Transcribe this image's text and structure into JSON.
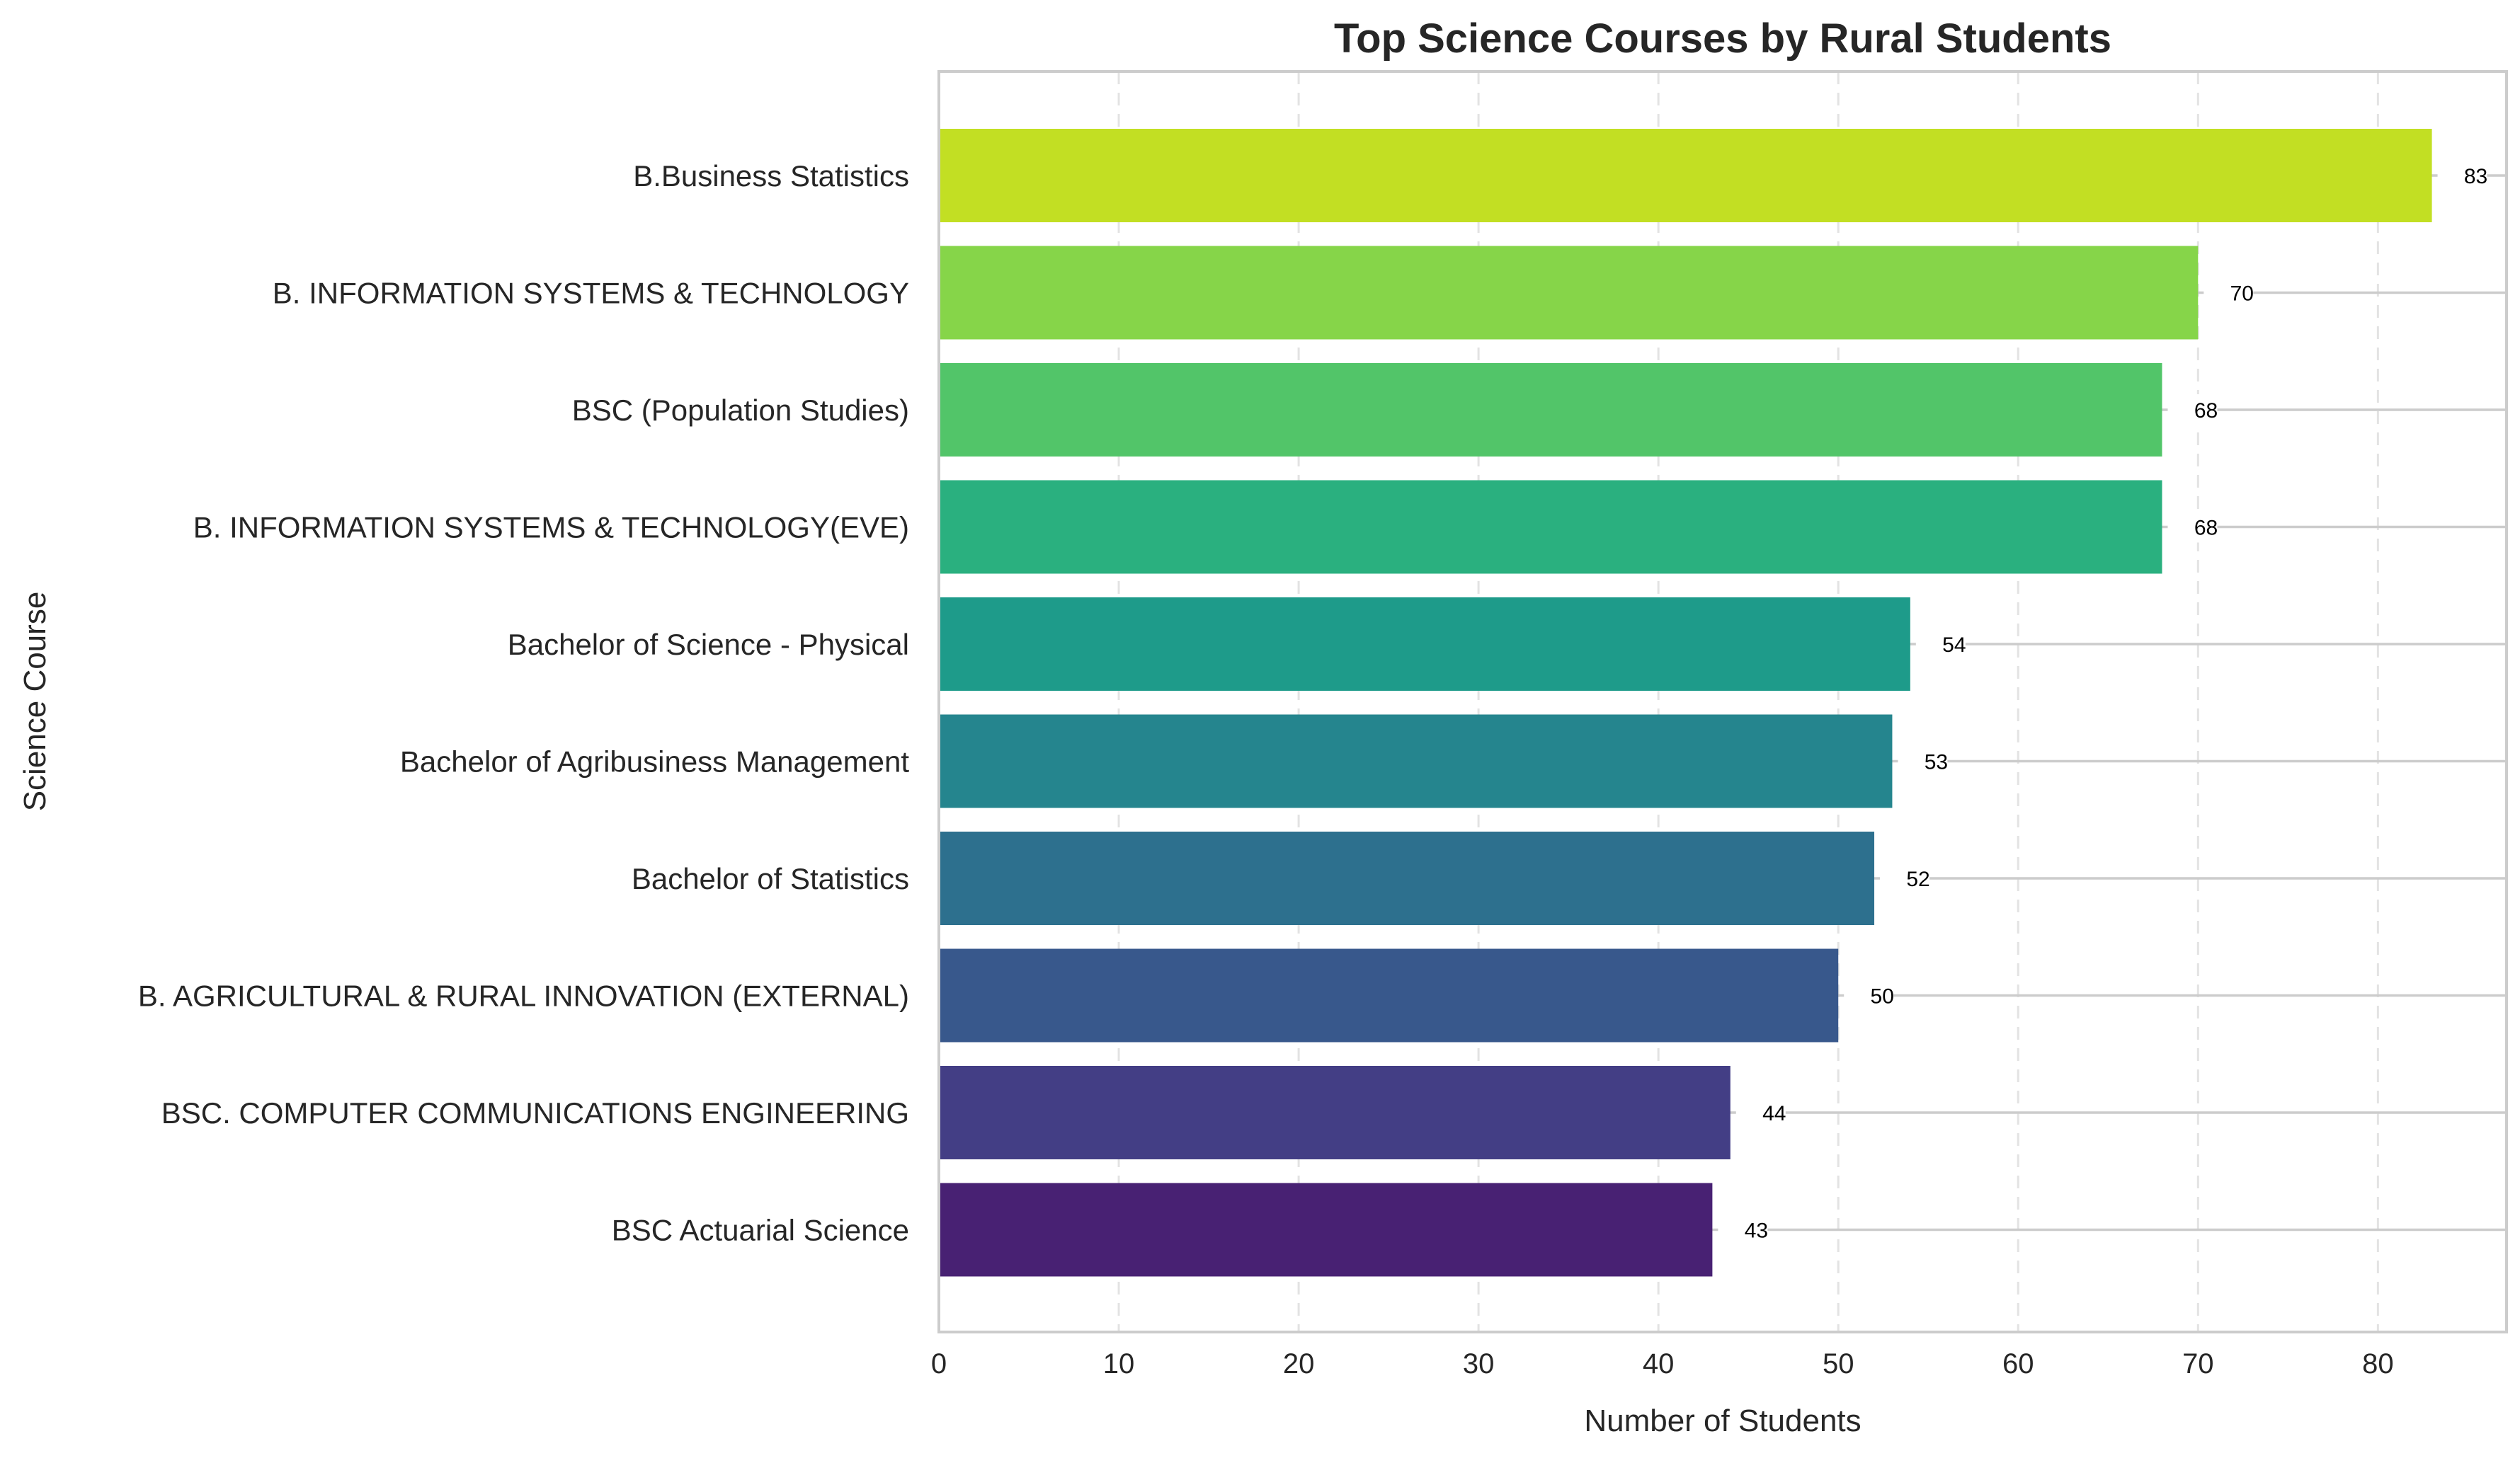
{
  "chart_data": {
    "type": "bar",
    "orientation": "horizontal",
    "title": "Top Science Courses by Rural Students",
    "xlabel": "Number of Students",
    "ylabel": "Science Course",
    "xlim": [
      0,
      87.15
    ],
    "xticks": [
      0,
      10,
      20,
      30,
      40,
      50,
      60,
      70,
      80
    ],
    "grid": true,
    "categories": [
      "B.Business Statistics",
      "B. INFORMATION SYSTEMS & TECHNOLOGY",
      "BSC (Population Studies)",
      "B. INFORMATION SYSTEMS & TECHNOLOGY(EVE)",
      "Bachelor of Science - Physical",
      "Bachelor of Agribusiness Management",
      "Bachelor of Statistics",
      "B. AGRICULTURAL & RURAL INNOVATION (EXTERNAL)",
      "BSC. COMPUTER COMMUNICATIONS ENGINEERING",
      "BSC Actuarial Science"
    ],
    "values": [
      83,
      70,
      68,
      68,
      54,
      53,
      52,
      50,
      44,
      43
    ],
    "colors": [
      "#c2df23",
      "#86d549",
      "#52c569",
      "#2ab07f",
      "#1e9b8a",
      "#25858e",
      "#2d708e",
      "#38588c",
      "#433e85",
      "#482173"
    ]
  }
}
